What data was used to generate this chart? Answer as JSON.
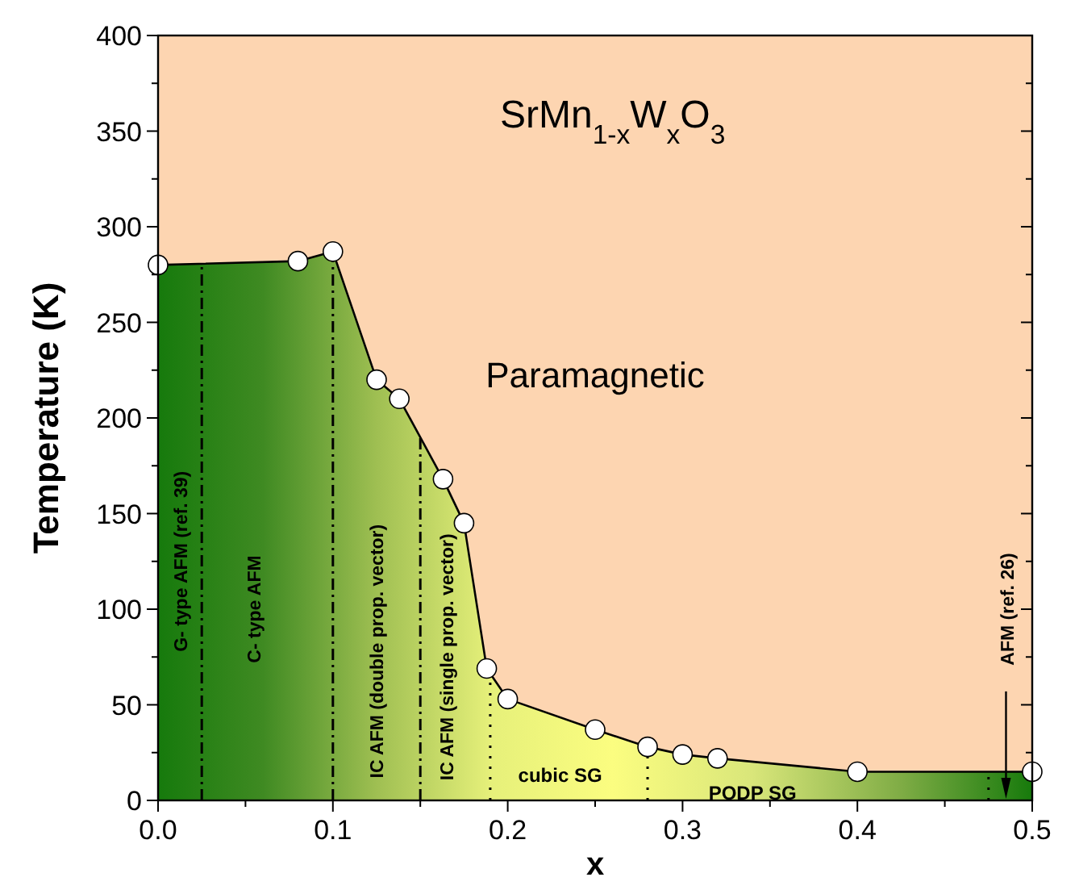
{
  "chart_data": {
    "type": "area",
    "title": "SrMn$_{1-x}$W$_{x}$O$_{3}$",
    "xlabel": "x",
    "ylabel": "Temperature (K)",
    "x": [
      0,
      0.08,
      0.1,
      0.125,
      0.138,
      0.163,
      0.175,
      0.188,
      0.2,
      0.25,
      0.28,
      0.3,
      0.32,
      0.4,
      0.5
    ],
    "series": [
      {
        "color": "#000000",
        "values": [
          280,
          282,
          287,
          220,
          210,
          168,
          145,
          69,
          53,
          37,
          28,
          24,
          22,
          15,
          15
        ]
      }
    ],
    "marker": "circle",
    "line_style": "solid",
    "grid": false,
    "xlim": [
      0,
      0.5
    ],
    "ylim": [
      0,
      400
    ],
    "xticks": [
      {
        "value": 0,
        "label": "0.0"
      },
      {
        "value": 0.05,
        "label": null
      },
      0.1,
      {
        "value": 0.15,
        "label": null
      },
      0.2,
      {
        "value": 0.25,
        "label": null
      },
      0.3,
      {
        "value": 0.35,
        "label": null
      },
      0.4,
      {
        "value": 0.45,
        "label": null
      },
      0.5
    ],
    "yticks": [
      0,
      {
        "value": 25,
        "label": null
      },
      50,
      {
        "value": 75,
        "label": null
      },
      100,
      {
        "value": 125,
        "label": null
      },
      150,
      {
        "value": 175,
        "label": null
      },
      200,
      {
        "value": 225,
        "label": null
      },
      250,
      {
        "value": 275,
        "label": null
      },
      300,
      {
        "value": 325,
        "label": null
      },
      350,
      {
        "value": 375,
        "label": null
      },
      400
    ],
    "ref_lines": [
      {
        "axis": "x",
        "value": 0.025,
        "line_style": "dashed"
      },
      {
        "axis": "x",
        "value": 0.1,
        "line_style": "dashed"
      },
      {
        "axis": "x",
        "value": 0.15,
        "line_style": "dashed"
      },
      {
        "axis": "x",
        "value": 0.19,
        "line_style": "dotted"
      },
      {
        "axis": "x",
        "value": 0.28,
        "line_style": "dotted"
      },
      {
        "axis": "x",
        "value": 0.475,
        "line_style": "dotted"
      }
    ],
    "annotations": [
      "G- type AFM (ref. 39)",
      "C- type AFM",
      "IC AFM (double prop. vector)",
      "IC AFM (single prop. vector)",
      "AFM (ref. 26)",
      "cubic SG",
      "PODP SG",
      "Paramagnetic"
    ]
  }
}
